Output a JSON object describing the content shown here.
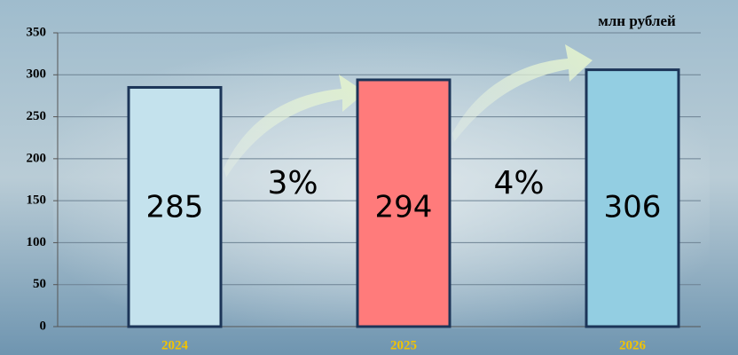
{
  "chart_data": {
    "type": "bar",
    "unit": "млн рублей",
    "categories": [
      "2024",
      "2025",
      "2026"
    ],
    "values": [
      285,
      294,
      306
    ],
    "colors": [
      "#c4e2ed",
      "#ff7b7b",
      "#93cee2"
    ],
    "edge_color": "#1c3558",
    "annotations": [
      "3%",
      "4%"
    ],
    "ylim": [
      0,
      350
    ],
    "yticks": [
      0,
      50,
      100,
      150,
      200,
      250,
      300,
      350
    ],
    "grid": true
  }
}
